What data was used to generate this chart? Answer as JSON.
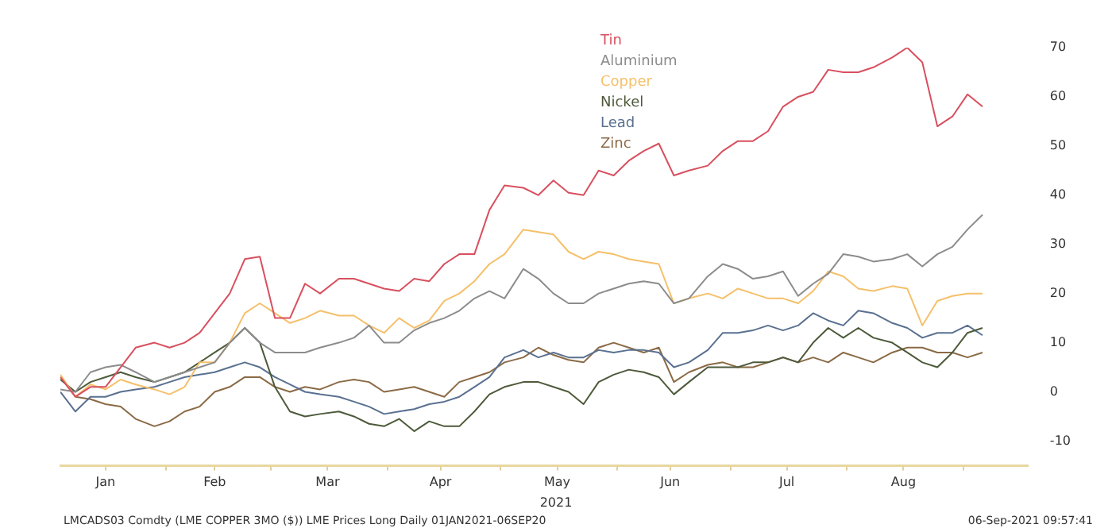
{
  "chart_data": {
    "type": "line",
    "xlabel": "2021",
    "x": [
      "2021-01-04",
      "2021-01-08",
      "2021-01-12",
      "2021-01-16",
      "2021-01-20",
      "2021-01-24",
      "2021-01-29",
      "2021-02-02",
      "2021-02-06",
      "2021-02-10",
      "2021-02-14",
      "2021-02-18",
      "2021-02-22",
      "2021-02-26",
      "2021-03-02",
      "2021-03-06",
      "2021-03-10",
      "2021-03-14",
      "2021-03-19",
      "2021-03-23",
      "2021-03-27",
      "2021-03-31",
      "2021-04-04",
      "2021-04-08",
      "2021-04-12",
      "2021-04-16",
      "2021-04-20",
      "2021-04-24",
      "2021-04-28",
      "2021-05-02",
      "2021-05-07",
      "2021-05-11",
      "2021-05-15",
      "2021-05-19",
      "2021-05-23",
      "2021-05-27",
      "2021-05-31",
      "2021-06-04",
      "2021-06-08",
      "2021-06-12",
      "2021-06-16",
      "2021-06-20",
      "2021-06-25",
      "2021-06-29",
      "2021-07-03",
      "2021-07-07",
      "2021-07-11",
      "2021-07-15",
      "2021-07-19",
      "2021-07-23",
      "2021-07-27",
      "2021-07-31",
      "2021-08-04",
      "2021-08-08",
      "2021-08-13",
      "2021-08-17",
      "2021-08-21",
      "2021-08-25",
      "2021-08-29",
      "2021-09-02",
      "2021-09-06"
    ],
    "series": [
      {
        "name": "Tin",
        "color": "#d8505f",
        "values": [
          3,
          -1,
          1,
          1,
          5,
          9,
          10,
          9,
          10,
          12,
          16,
          20,
          27,
          27.5,
          15,
          15,
          22,
          20,
          23,
          23,
          22,
          21,
          20.5,
          23,
          22.5,
          26,
          28,
          28,
          37,
          42,
          41.5,
          40,
          43,
          40.5,
          40,
          45,
          44,
          47,
          49,
          50.5,
          44,
          45,
          46,
          49,
          51,
          51,
          53,
          58,
          60,
          61,
          65.5,
          65,
          65,
          66,
          68,
          70,
          67,
          54,
          56,
          60.5,
          58
        ]
      },
      {
        "name": "Aluminium",
        "color": "#8c8c8c",
        "values": [
          0.5,
          0,
          4,
          5,
          5.5,
          4,
          2,
          3,
          4,
          5,
          6,
          10,
          13,
          10,
          8,
          8,
          8,
          9,
          10,
          11,
          13.5,
          10,
          10,
          12.5,
          14,
          15,
          16.5,
          19,
          20.5,
          19,
          25,
          23,
          20,
          18,
          18,
          20,
          21,
          22,
          22.5,
          22,
          18,
          19,
          23.5,
          26,
          25,
          23,
          23.5,
          24.5,
          19.5,
          22,
          24,
          28,
          27.5,
          26.5,
          27,
          28,
          25.5,
          28,
          29.5,
          33,
          36
        ]
      },
      {
        "name": "Copper",
        "color": "#f5c06a",
        "values": [
          3.5,
          -1,
          1.5,
          0.5,
          2.5,
          1.5,
          0.5,
          -0.5,
          1,
          6,
          6,
          10,
          16,
          18,
          16,
          14,
          15,
          16.5,
          15.5,
          15.5,
          13.5,
          12,
          15,
          13,
          14.5,
          18.5,
          20,
          22.5,
          26,
          28,
          33,
          32.5,
          32,
          28.5,
          27,
          28.5,
          28,
          27,
          26.5,
          26,
          18,
          19,
          20,
          19,
          21,
          20,
          19,
          19,
          18,
          20.5,
          24.5,
          23.5,
          21,
          20.5,
          21.5,
          21,
          13.5,
          18.5,
          19.5,
          20,
          20
        ]
      },
      {
        "name": "Nickel",
        "color": "#4d5a3a",
        "values": [
          2.5,
          0,
          2,
          3,
          4,
          3,
          2,
          3,
          4,
          6,
          8,
          10,
          13,
          10,
          1,
          -4,
          -5,
          -4.5,
          -4,
          -5,
          -6.5,
          -7,
          -5.5,
          -8,
          -6,
          -7,
          -7,
          -4,
          -0.5,
          1,
          2,
          2,
          1,
          0,
          -2.5,
          2,
          3.5,
          4.5,
          4,
          3,
          -0.5,
          2,
          5,
          5,
          5,
          6,
          6,
          7,
          6,
          10,
          13,
          11,
          13,
          11,
          10,
          8,
          6,
          5,
          8,
          12,
          13
        ]
      },
      {
        "name": "Lead",
        "color": "#5a7090",
        "values": [
          0,
          -4,
          -1,
          -1,
          0,
          0.5,
          1,
          2,
          3,
          3.5,
          4,
          5,
          6,
          5,
          3,
          1.5,
          0,
          -0.5,
          -1,
          -2,
          -3,
          -4.5,
          -4,
          -3.5,
          -2.5,
          -2,
          -1,
          1,
          3,
          7,
          8.5,
          7,
          8,
          7,
          7,
          8.5,
          8,
          8.5,
          8.5,
          8,
          5,
          6,
          8.5,
          12,
          12,
          12.5,
          13.5,
          12.5,
          13.5,
          16,
          14.5,
          13.5,
          16.5,
          16,
          14,
          13,
          11,
          12,
          12,
          13.5,
          11.5
        ]
      },
      {
        "name": "Zinc",
        "color": "#8a6a45",
        "values": [
          3,
          -1,
          -1.5,
          -2.5,
          -3,
          -5.5,
          -7,
          -6,
          -4,
          -3,
          0,
          1,
          3,
          3,
          1,
          0,
          1,
          0.5,
          2,
          2.5,
          2,
          0,
          0.5,
          1,
          0,
          -1,
          2,
          3,
          4,
          6,
          7,
          9,
          7.5,
          6.5,
          6,
          9,
          10,
          9,
          8,
          9,
          2,
          4,
          5.5,
          6,
          5,
          5,
          6,
          7,
          6,
          7,
          6,
          8,
          7,
          6,
          8,
          9,
          9,
          8,
          8,
          7,
          8
        ]
      }
    ],
    "xlim": [
      "2021-01-04",
      "2021-09-18"
    ],
    "xticks": [
      {
        "value": "2021-01-16",
        "label": "Jan"
      },
      {
        "value": "2021-02-01",
        "label": null
      },
      {
        "value": "2021-02-14",
        "label": "Feb"
      },
      {
        "value": "2021-03-01",
        "label": null
      },
      {
        "value": "2021-03-16",
        "label": "Mar"
      },
      {
        "value": "2021-04-01",
        "label": null
      },
      {
        "value": "2021-04-15",
        "label": "Apr"
      },
      {
        "value": "2021-05-01",
        "label": null
      },
      {
        "value": "2021-05-16",
        "label": "May"
      },
      {
        "value": "2021-06-01",
        "label": null
      },
      {
        "value": "2021-06-15",
        "label": "Jun"
      },
      {
        "value": "2021-07-01",
        "label": null
      },
      {
        "value": "2021-07-16",
        "label": "Jul"
      },
      {
        "value": "2021-08-01",
        "label": null
      },
      {
        "value": "2021-08-16",
        "label": "Aug"
      },
      {
        "value": "2021-09-01",
        "label": null
      }
    ],
    "ylim": [
      -15,
      70
    ],
    "yticks": [
      -10,
      0,
      10,
      20,
      30,
      40,
      50,
      60,
      70
    ],
    "legend": "top",
    "marker": "none",
    "line_style": "solid",
    "grid": false,
    "annotations": [
      "LMCADS03 Comdty (LME COPPER 3MO ($)) LME Prices Long Daily 01JAN2021-06SEP20",
      "06-Sep-2021 09:57:41"
    ]
  }
}
